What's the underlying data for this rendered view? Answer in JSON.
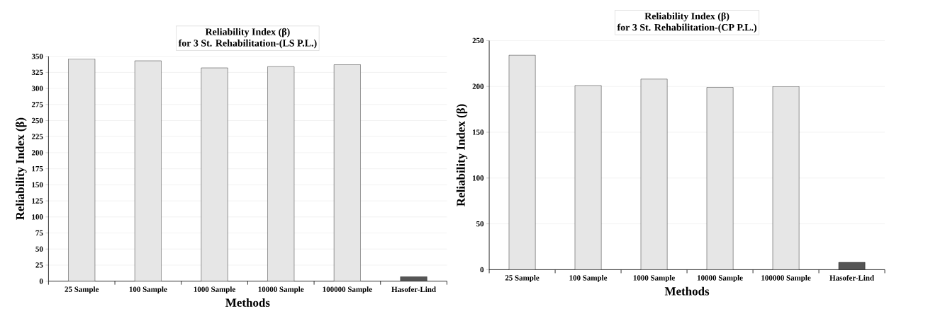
{
  "chart_data": [
    {
      "type": "bar",
      "title": "Reliability Index  (β)",
      "subtitle": "for 3 St. Rehabilitation-(LS P.L.)",
      "xlabel": "Methods",
      "ylabel": "Reliability Index  (β)",
      "categories": [
        "25 Sample",
        "100 Sample",
        "1000 Sample",
        "10000 Sample",
        "100000 Sample",
        "Hasofer-Lind"
      ],
      "values": [
        346,
        343,
        332,
        334,
        337,
        7
      ],
      "colors": [
        "#e6e6e6",
        "#e6e6e6",
        "#e6e6e6",
        "#e6e6e6",
        "#e6e6e6",
        "#555555"
      ],
      "ylim": [
        0,
        350
      ],
      "yticks": [
        0,
        25,
        50,
        75,
        100,
        125,
        150,
        175,
        200,
        225,
        250,
        275,
        300,
        325,
        350
      ],
      "grid": "y"
    },
    {
      "type": "bar",
      "title": "Reliability Index  (β)",
      "subtitle": "for 3 St. Rehabilitation-(CP P.L.)",
      "xlabel": "Methods",
      "ylabel": "Reliability Index  (β)",
      "categories": [
        "25 Sample",
        "100 Sample",
        "1000 Sample",
        "10000 Sample",
        "100000 Sample",
        "Hasofer-Lind"
      ],
      "values": [
        234,
        201,
        208,
        199,
        200,
        8
      ],
      "colors": [
        "#e6e6e6",
        "#e6e6e6",
        "#e6e6e6",
        "#e6e6e6",
        "#e6e6e6",
        "#555555"
      ],
      "ylim": [
        0,
        250
      ],
      "yticks": [
        0,
        50,
        100,
        150,
        200,
        250
      ],
      "grid": "y"
    }
  ]
}
